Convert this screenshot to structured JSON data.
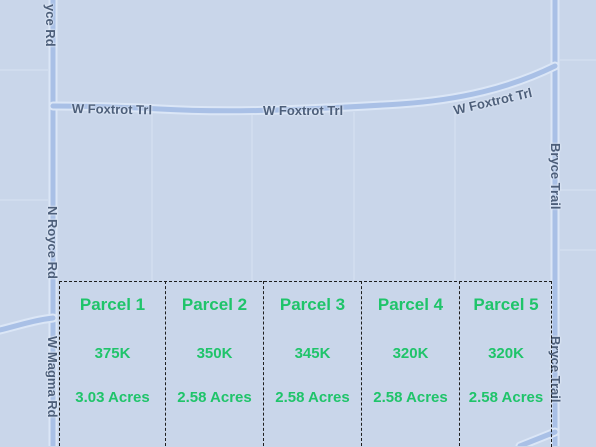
{
  "roads": {
    "w_foxtrot": [
      "W Foxtrot Trl",
      "W Foxtrot Trl",
      "W Foxtrot Trl"
    ],
    "n_royce_top": "yce Rd",
    "n_royce": "N Royce Rd",
    "w_magma": "W Magma Rd",
    "bryce_top": "Bryce Trail",
    "bryce_bottom": "Bryce Trail"
  },
  "parcels": [
    {
      "name": "Parcel 1",
      "price": "375K",
      "acres": "3.03 Acres"
    },
    {
      "name": "Parcel 2",
      "price": "350K",
      "acres": "2.58 Acres"
    },
    {
      "name": "Parcel 3",
      "price": "345K",
      "acres": "2.58 Acres"
    },
    {
      "name": "Parcel 4",
      "price": "320K",
      "acres": "2.58 Acres"
    },
    {
      "name": "Parcel 5",
      "price": "320K",
      "acres": "2.58 Acres"
    }
  ],
  "colors": {
    "map_background": "#c9d6ea",
    "road": "#a9c0e6",
    "road_outline": "#dbe6f6",
    "parcel_text": "#1fc46a",
    "parcel_border": "#1e1e1e"
  }
}
